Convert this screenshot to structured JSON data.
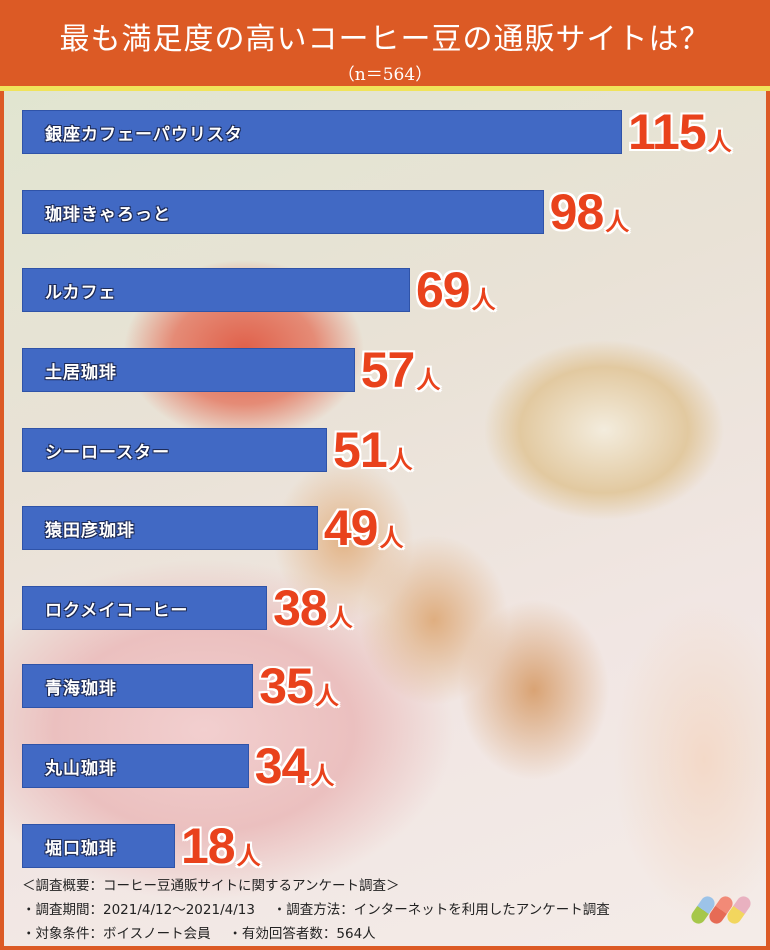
{
  "header": {
    "title": "最も満足度の高いコーヒー豆の通販サイトは？",
    "sample": "（n＝564）"
  },
  "chart_data": {
    "type": "bar",
    "orientation": "horizontal",
    "title": "最も満足度の高いコーヒー豆の通販サイトは？",
    "unit": "人",
    "categories": [
      "銀座カフェーパウリスタ",
      "珈琲きゃろっと",
      "ルカフェ",
      "土居珈琲",
      "シーロースター",
      "猿田彦珈琲",
      "ロクメイコーヒー",
      "青海珈琲",
      "丸山珈琲",
      "堀口珈琲"
    ],
    "values": [
      115,
      98,
      69,
      57,
      51,
      49,
      38,
      35,
      34,
      18
    ],
    "bar_color": "#4169c4",
    "value_color": "#e9421c"
  },
  "notes": {
    "summary": "＜調査概要：コーヒー豆通販サイトに関するアンケート調査＞",
    "period": "・調査期間：2021/4/12〜2021/4/13　 ・調査方法：インターネットを利用したアンケート調査",
    "target": "・対象条件：ボイスノート会員　 ・有効回答者数：564人"
  },
  "colors": {
    "header": "#dc5a25",
    "accent_line": "#f0e35a"
  }
}
